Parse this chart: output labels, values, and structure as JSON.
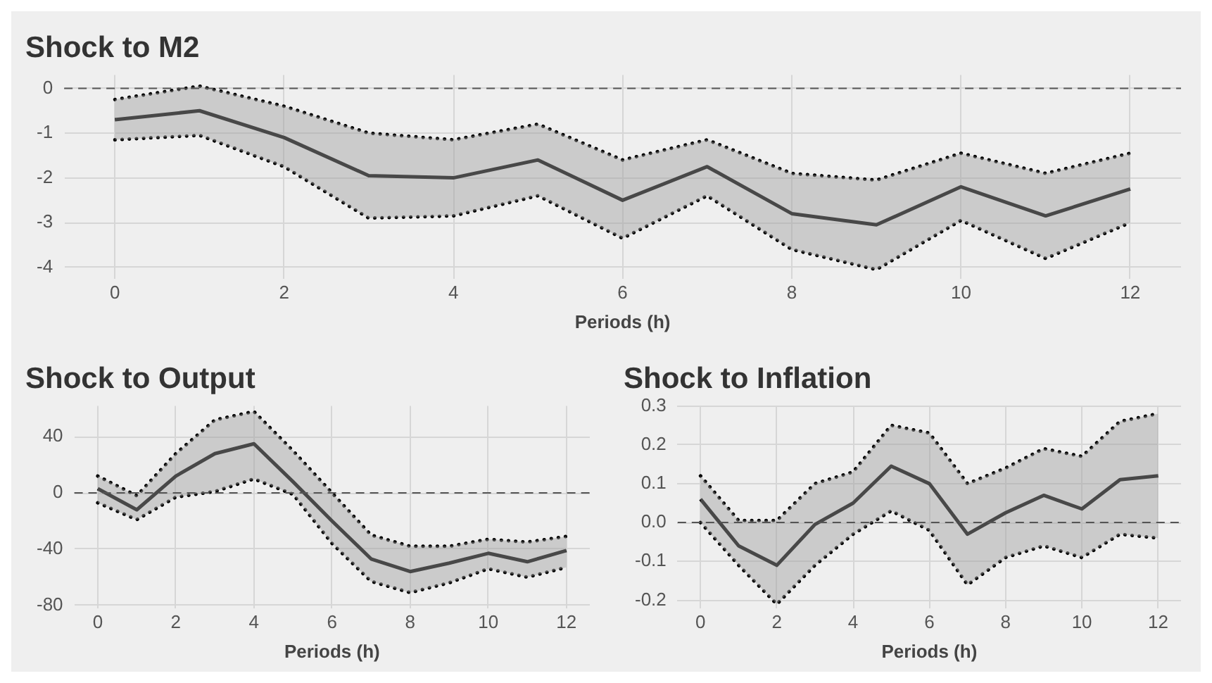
{
  "chart_data": [
    {
      "type": "line",
      "title": "Shock to M2",
      "xlabel": "Periods (h)",
      "x": [
        0,
        1,
        2,
        3,
        4,
        5,
        6,
        7,
        8,
        9,
        10,
        11,
        12
      ],
      "series": [
        {
          "color": "#000000",
          "values": [
            -0.7,
            -0.5,
            -1.1,
            -1.95,
            -2.0,
            -1.6,
            -2.5,
            -1.75,
            -2.8,
            -3.05,
            -2.2,
            -2.85,
            -2.25
          ],
          "upper": [
            -0.25,
            0.05,
            -0.4,
            -1.0,
            -1.15,
            -0.8,
            -1.6,
            -1.15,
            -1.9,
            -2.05,
            -1.45,
            -1.9,
            -1.45
          ],
          "lower": [
            -1.15,
            -1.05,
            -1.75,
            -2.9,
            -2.85,
            -2.4,
            -3.35,
            -2.4,
            -3.6,
            -4.05,
            -2.95,
            -3.8,
            -3.0
          ]
        },
        {
          "color": "#000000",
          "line_style": "dotted",
          "values": [
            -0.25,
            0.05,
            -0.4,
            -1.0,
            -1.15,
            -0.8,
            -1.6,
            -1.15,
            -1.9,
            -2.05,
            -1.45,
            -1.9,
            -1.45
          ]
        },
        {
          "color": "#000000",
          "line_style": "dotted",
          "values": [
            -1.15,
            -1.05,
            -1.75,
            -2.9,
            -2.85,
            -2.4,
            -3.35,
            -2.4,
            -3.6,
            -4.05,
            -2.95,
            -3.8,
            -3.0
          ]
        }
      ],
      "xlim": [
        -0.6,
        12.6
      ],
      "xticks": [
        0,
        2,
        4,
        6,
        8,
        10,
        12
      ],
      "ylim": [
        -4.25,
        0.3
      ],
      "yticks": [
        -4,
        -3,
        -2,
        -1,
        0
      ],
      "ref_lines": [
        {
          "axis": "y",
          "value": 0,
          "line_style": "dashed",
          "color": "#555555"
        }
      ],
      "grid": true,
      "legend": false,
      "marker": "none",
      "line_style": "solid"
    },
    {
      "type": "line",
      "title": "Shock to Output",
      "xlabel": "Periods (h)",
      "x": [
        0,
        1,
        2,
        3,
        4,
        5,
        6,
        7,
        8,
        9,
        10,
        11,
        12
      ],
      "series": [
        {
          "color": "#000000",
          "values": [
            3,
            -12,
            12,
            28,
            35,
            8,
            -20,
            -47,
            -56,
            -50,
            -43,
            -49,
            -41
          ],
          "upper": [
            12,
            -2,
            28,
            52,
            58,
            30,
            0,
            -30,
            -38,
            -38,
            -33,
            -35,
            -31
          ],
          "lower": [
            -7,
            -19,
            -3,
            1,
            10,
            -1,
            -36,
            -63,
            -71,
            -64,
            -54,
            -60,
            -53
          ]
        },
        {
          "color": "#000000",
          "line_style": "dotted",
          "values": [
            12,
            -2,
            28,
            52,
            58,
            30,
            0,
            -30,
            -38,
            -38,
            -33,
            -35,
            -31
          ]
        },
        {
          "color": "#000000",
          "line_style": "dotted",
          "values": [
            -7,
            -19,
            -3,
            1,
            10,
            -1,
            -36,
            -63,
            -71,
            -64,
            -54,
            -60,
            -53
          ]
        }
      ],
      "xlim": [
        -0.6,
        12.6
      ],
      "xticks": [
        0,
        2,
        4,
        6,
        8,
        10,
        12
      ],
      "ylim": [
        -82,
        62
      ],
      "yticks": [
        -80,
        -40,
        0,
        40
      ],
      "ref_lines": [
        {
          "axis": "y",
          "value": 0,
          "line_style": "dashed",
          "color": "#555555"
        }
      ],
      "grid": true,
      "legend": false,
      "marker": "none",
      "line_style": "solid"
    },
    {
      "type": "line",
      "title": "Shock to Inflation",
      "xlabel": "Periods (h)",
      "x": [
        0,
        1,
        2,
        3,
        4,
        5,
        6,
        7,
        8,
        9,
        10,
        11,
        12
      ],
      "series": [
        {
          "color": "#000000",
          "values": [
            0.06,
            -0.06,
            -0.11,
            -0.005,
            0.05,
            0.145,
            0.1,
            -0.03,
            0.025,
            0.07,
            0.035,
            0.11,
            0.12
          ],
          "upper": [
            0.12,
            0.005,
            0.005,
            0.1,
            0.13,
            0.25,
            0.23,
            0.1,
            0.14,
            0.19,
            0.17,
            0.26,
            0.28
          ],
          "lower": [
            0,
            -0.11,
            -0.21,
            -0.11,
            -0.03,
            0.03,
            -0.02,
            -0.16,
            -0.09,
            -0.06,
            -0.09,
            -0.03,
            -0.04
          ]
        },
        {
          "color": "#000000",
          "line_style": "dotted",
          "values": [
            0.12,
            0.005,
            0.005,
            0.1,
            0.13,
            0.25,
            0.23,
            0.1,
            0.14,
            0.19,
            0.17,
            0.26,
            0.28
          ]
        },
        {
          "color": "#000000",
          "line_style": "dotted",
          "values": [
            0,
            -0.11,
            -0.21,
            -0.11,
            -0.03,
            0.03,
            -0.02,
            -0.16,
            -0.09,
            -0.06,
            -0.09,
            -0.03,
            -0.04
          ]
        }
      ],
      "xlim": [
        -0.6,
        12.6
      ],
      "xticks": [
        0,
        2,
        4,
        6,
        8,
        10,
        12
      ],
      "ylim": [
        -0.22,
        0.3
      ],
      "yticks": [
        {
          "value": -0.2,
          "label": "-0.2"
        },
        {
          "value": -0.1,
          "label": "-0.1"
        },
        {
          "value": 0,
          "label": "0.0"
        },
        {
          "value": 0.1,
          "label": "0.1"
        },
        {
          "value": 0.2,
          "label": "0.2"
        },
        {
          "value": 0.3,
          "label": "0.3"
        }
      ],
      "ref_lines": [
        {
          "axis": "y",
          "value": 0,
          "line_style": "dashed",
          "color": "#555555"
        }
      ],
      "grid": true,
      "legend": false,
      "marker": "none",
      "line_style": "solid"
    }
  ]
}
